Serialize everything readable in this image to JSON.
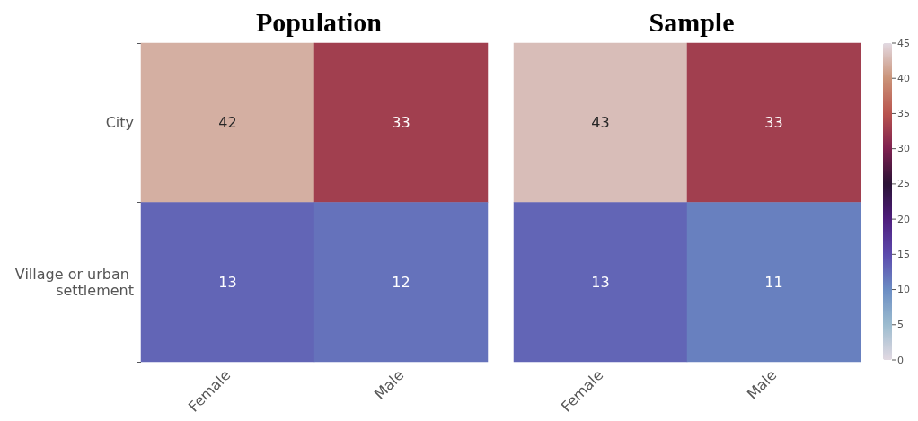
{
  "chart_data": [
    {
      "type": "heatmap",
      "title": "Population",
      "categories": [
        "Female",
        "Male"
      ],
      "y_categories": [
        "City",
        "Village or urban settlement"
      ],
      "cells": [
        [
          42,
          33
        ],
        [
          13,
          12
        ]
      ],
      "data_labels": true
    },
    {
      "type": "heatmap",
      "title": "Sample",
      "categories": [
        "Female",
        "Male"
      ],
      "y_categories": [
        null,
        null
      ],
      "cells": [
        [
          43,
          33
        ],
        [
          13,
          11
        ]
      ],
      "clim": [
        0,
        45
      ],
      "cticks": [
        0,
        5,
        10,
        15,
        20,
        25,
        30,
        35,
        40,
        45
      ],
      "data_labels": true,
      "tick_labels": "x"
    }
  ]
}
